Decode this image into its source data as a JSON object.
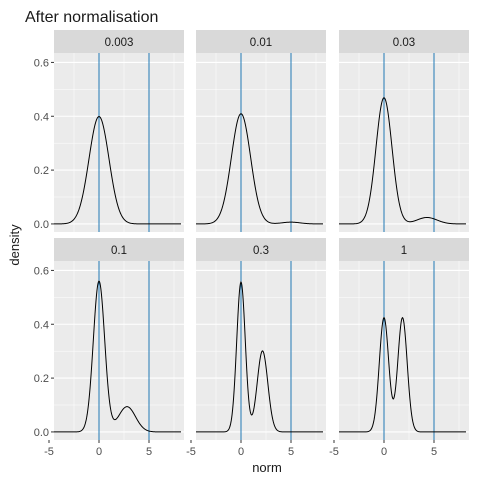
{
  "chart_data": {
    "type": "line",
    "title": "After normalisation",
    "xlabel": "norm",
    "ylabel": "density",
    "xlim": [
      -4.5,
      8.5
    ],
    "ylim": [
      -0.03,
      0.635
    ],
    "x_ticks": [
      -5,
      0,
      5
    ],
    "y_ticks": [
      0.0,
      0.2,
      0.4,
      0.6
    ],
    "x_tick_labels": [
      "-5",
      "0",
      "5"
    ],
    "y_tick_labels": [
      "0.0",
      "0.2",
      "0.4",
      "0.6"
    ],
    "grid": true,
    "facet_layout": {
      "rows": 2,
      "cols": 3
    },
    "reference_lines_x": [
      0,
      5
    ],
    "colors": {
      "panel_bg": "#ebebeb",
      "strip_bg": "#d9d9d9",
      "grid": "#ffffff",
      "line": "#000000",
      "vline": "#1f78b4",
      "text": "#1a1a1a",
      "axis_text": "#4d4d4d"
    },
    "x_range_drawn": [
      -4.5,
      8.2
    ],
    "facets": [
      {
        "label": "0.003",
        "components": [
          {
            "w": 1.0,
            "mu": 0.0,
            "sd": 1.0
          }
        ]
      },
      {
        "label": "0.01",
        "components": [
          {
            "w": 0.985,
            "mu": 0.0,
            "sd": 0.96
          },
          {
            "w": 0.015,
            "mu": 5.0,
            "sd": 0.9
          }
        ]
      },
      {
        "label": "0.03",
        "components": [
          {
            "w": 0.94,
            "mu": 0.0,
            "sd": 0.8
          },
          {
            "w": 0.06,
            "mu": 4.3,
            "sd": 1.0
          }
        ]
      },
      {
        "label": "0.1",
        "components": [
          {
            "w": 0.8,
            "mu": 0.0,
            "sd": 0.57
          },
          {
            "w": 0.2,
            "mu": 2.8,
            "sd": 0.85
          }
        ]
      },
      {
        "label": "0.3",
        "components": [
          {
            "w": 0.6,
            "mu": 0.0,
            "sd": 0.43
          },
          {
            "w": 0.4,
            "mu": 2.15,
            "sd": 0.53
          }
        ]
      },
      {
        "label": "1",
        "components": [
          {
            "w": 0.5,
            "mu": 0.0,
            "sd": 0.47
          },
          {
            "w": 0.5,
            "mu": 1.85,
            "sd": 0.47
          }
        ]
      }
    ]
  }
}
